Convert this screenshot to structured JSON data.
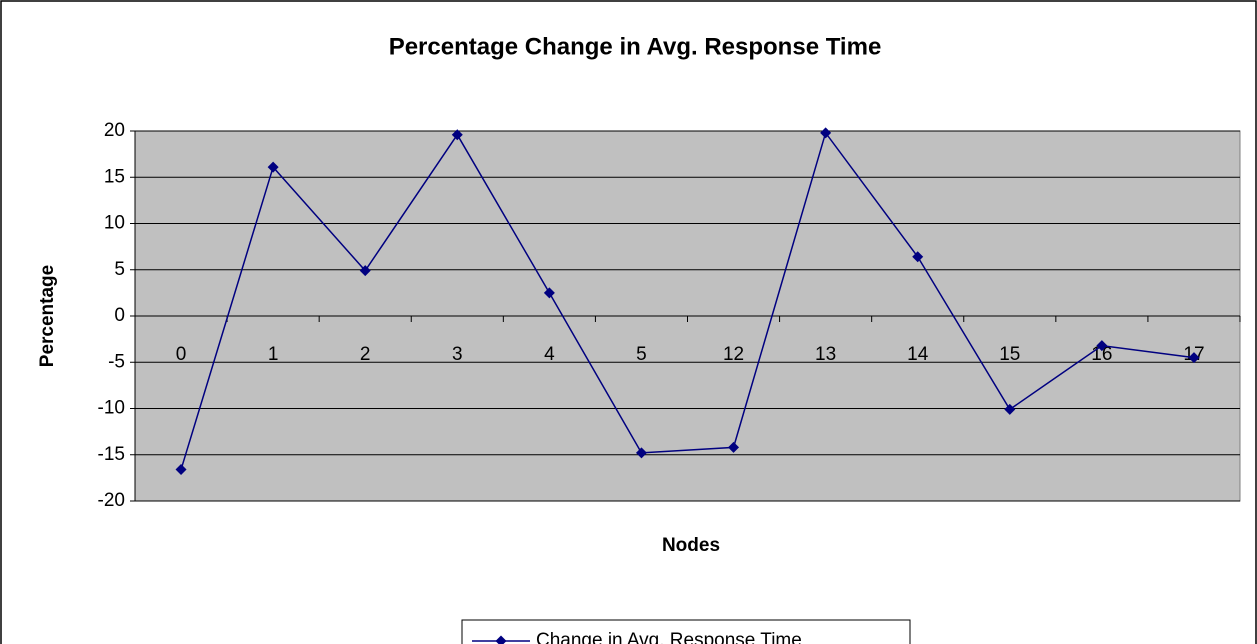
{
  "chart_data": {
    "type": "line",
    "title": "Percentage Change in Avg. Response Time",
    "x_label": "Nodes",
    "y_label": "Percentage",
    "categories": [
      "0",
      "1",
      "2",
      "3",
      "4",
      "5",
      "12",
      "13",
      "14",
      "15",
      "16",
      "17"
    ],
    "series": [
      {
        "name": "Change in Avg. Response Time",
        "color": "#000080",
        "values": [
          -16.6,
          16.1,
          4.9,
          19.6,
          2.5,
          -14.8,
          -14.2,
          19.8,
          6.4,
          -10.1,
          -3.2,
          -4.5
        ]
      }
    ],
    "ylim": [
      -20,
      20
    ],
    "yticks": [
      -20,
      -15,
      -10,
      -5,
      0,
      5,
      10,
      15,
      20
    ],
    "grid": true,
    "plot_background": "#c0c0c0",
    "legend": "bottom"
  }
}
